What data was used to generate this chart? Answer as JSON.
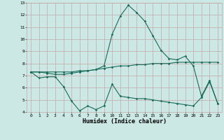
{
  "xlabel": "Humidex (Indice chaleur)",
  "x": [
    0,
    1,
    2,
    3,
    4,
    5,
    6,
    7,
    8,
    9,
    10,
    11,
    12,
    13,
    14,
    15,
    16,
    17,
    18,
    19,
    20,
    21,
    22,
    23
  ],
  "line1": [
    7.3,
    6.8,
    6.9,
    6.9,
    6.1,
    4.9,
    4.1,
    4.5,
    4.2,
    4.5,
    6.3,
    5.3,
    5.2,
    5.1,
    5.1,
    5.0,
    4.9,
    4.8,
    4.7,
    4.6,
    4.5,
    5.2,
    6.5,
    4.7
  ],
  "line2": [
    7.3,
    7.3,
    7.3,
    7.3,
    7.3,
    7.3,
    7.4,
    7.4,
    7.5,
    7.6,
    7.7,
    7.8,
    7.8,
    7.9,
    7.9,
    8.0,
    8.0,
    8.0,
    8.1,
    8.1,
    8.1,
    8.1,
    8.1,
    8.1
  ],
  "line3": [
    7.3,
    7.3,
    7.2,
    7.1,
    7.1,
    7.2,
    7.3,
    7.4,
    7.5,
    7.8,
    10.4,
    11.9,
    12.8,
    12.2,
    11.5,
    10.3,
    9.1,
    8.4,
    8.3,
    8.6,
    7.8,
    5.3,
    6.6,
    4.7
  ],
  "bg_color": "#cce8e4",
  "grid_color": "#c4a8a8",
  "line_color": "#1a6b5a",
  "ylim": [
    4,
    13
  ],
  "xlim": [
    -0.5,
    23.5
  ],
  "yticks": [
    4,
    5,
    6,
    7,
    8,
    9,
    10,
    11,
    12,
    13
  ],
  "xticks": [
    0,
    1,
    2,
    3,
    4,
    5,
    6,
    7,
    8,
    9,
    10,
    11,
    12,
    13,
    14,
    15,
    16,
    17,
    18,
    19,
    20,
    21,
    22,
    23
  ]
}
